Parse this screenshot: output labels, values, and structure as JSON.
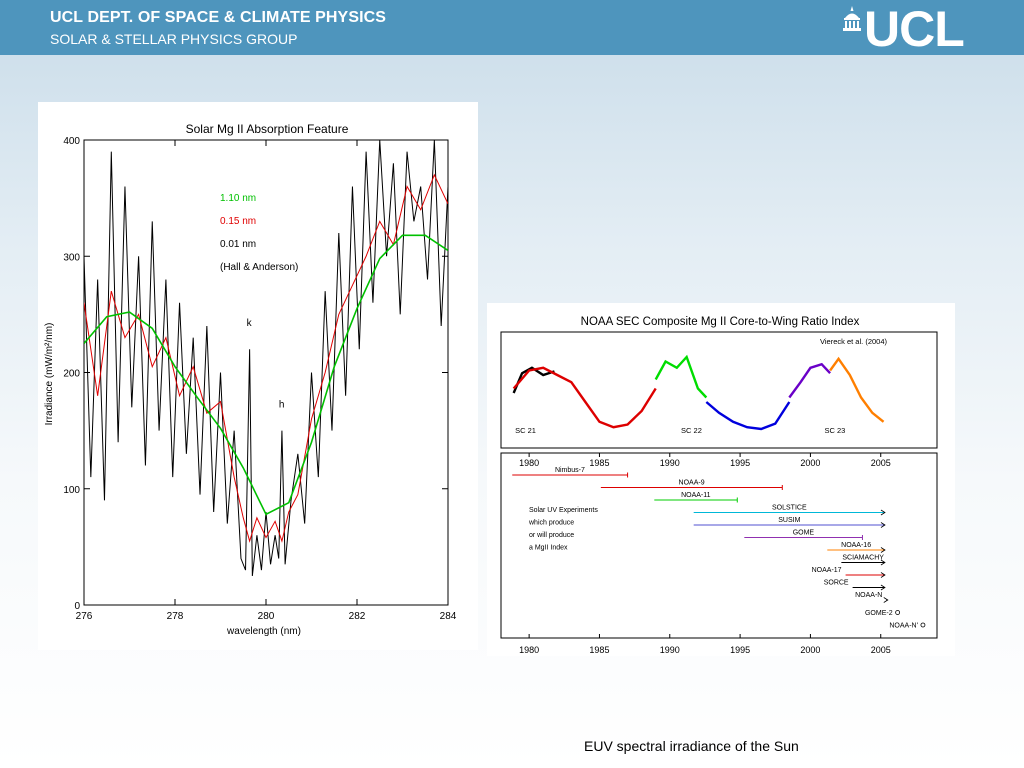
{
  "header": {
    "title": "UCL DEPT. OF SPACE & CLIMATE PHYSICS",
    "subtitle": "SOLAR & STELLAR PHYSICS GROUP",
    "logo_text": "UCL",
    "bg_color": "#4e95bd"
  },
  "caption": "EUV spectral irradiance of the Sun",
  "chart_data": [
    {
      "type": "line",
      "title": "Solar Mg II Absorption Feature",
      "xlabel": "wavelength (nm)",
      "ylabel": "Irradiance (mW/m²/nm)",
      "xlim": [
        276,
        284
      ],
      "ylim": [
        0,
        400
      ],
      "xticks": [
        "276",
        "278",
        "280",
        "282",
        "284"
      ],
      "yticks": [
        "0",
        "100",
        "200",
        "300",
        "400"
      ],
      "legend": [
        {
          "label": "1.10 nm",
          "color": "#00c000"
        },
        {
          "label": "0.15 nm",
          "color": "#e00000"
        },
        {
          "label": "0.01 nm",
          "color": "#000000"
        },
        {
          "label": "(Hall & Anderson)",
          "color": "#000000"
        }
      ],
      "annotations": [
        {
          "text": "k",
          "x": 279.64,
          "y": 240
        },
        {
          "text": "h",
          "x": 280.35,
          "y": 170
        }
      ],
      "series": [
        {
          "name": "1.10 nm",
          "color": "#00c000",
          "x": [
            276,
            276.5,
            277,
            277.5,
            278,
            278.5,
            279,
            279.5,
            280,
            280.5,
            281,
            281.5,
            282,
            282.5,
            283,
            283.5,
            284
          ],
          "y": [
            225,
            248,
            252,
            238,
            205,
            178,
            152,
            118,
            78,
            88,
            140,
            205,
            255,
            298,
            318,
            318,
            305
          ]
        },
        {
          "name": "0.15 nm",
          "color": "#e00000",
          "x": [
            276,
            276.3,
            276.6,
            276.9,
            277.2,
            277.5,
            277.8,
            278.1,
            278.4,
            278.7,
            279,
            279.3,
            279.5,
            279.64,
            279.8,
            280,
            280.2,
            280.35,
            280.5,
            280.7,
            281,
            281.3,
            281.6,
            281.9,
            282.2,
            282.5,
            282.8,
            283.1,
            283.4,
            283.7,
            284
          ],
          "y": [
            260,
            180,
            270,
            230,
            250,
            205,
            230,
            180,
            205,
            165,
            175,
            110,
            75,
            55,
            75,
            58,
            72,
            55,
            80,
            95,
            160,
            200,
            250,
            275,
            300,
            330,
            310,
            360,
            340,
            370,
            345
          ]
        },
        {
          "name": "0.01 nm",
          "color": "#000000",
          "x": [
            276,
            276.15,
            276.3,
            276.45,
            276.6,
            276.75,
            276.9,
            277.05,
            277.2,
            277.35,
            277.5,
            277.65,
            277.8,
            277.95,
            278.1,
            278.25,
            278.4,
            278.55,
            278.7,
            278.85,
            279,
            279.15,
            279.3,
            279.45,
            279.55,
            279.64,
            279.7,
            279.8,
            279.9,
            280,
            280.1,
            280.2,
            280.28,
            280.35,
            280.42,
            280.55,
            280.7,
            280.85,
            281,
            281.15,
            281.3,
            281.45,
            281.6,
            281.75,
            281.9,
            282.05,
            282.2,
            282.35,
            282.5,
            282.65,
            282.8,
            282.95,
            283.1,
            283.25,
            283.4,
            283.55,
            283.7,
            283.85,
            284
          ],
          "y": [
            300,
            110,
            280,
            90,
            390,
            140,
            360,
            170,
            300,
            120,
            330,
            150,
            280,
            110,
            260,
            130,
            230,
            95,
            240,
            80,
            200,
            70,
            150,
            40,
            30,
            220,
            25,
            60,
            30,
            80,
            35,
            60,
            40,
            150,
            35,
            90,
            130,
            70,
            200,
            110,
            270,
            150,
            320,
            180,
            360,
            220,
            390,
            260,
            400,
            300,
            380,
            250,
            390,
            330,
            360,
            280,
            400,
            240,
            360
          ]
        }
      ]
    },
    {
      "type": "line",
      "title": "NOAA SEC Composite Mg II Core-to-Wing Ratio Index",
      "annotation_top": "Viereck et al. (2004)",
      "xlim": [
        1978,
        2009
      ],
      "xticks": [
        "1980",
        "1985",
        "1990",
        "1995",
        "2000",
        "2005"
      ],
      "cycle_labels": [
        {
          "text": "SC 21",
          "x": 1979.0
        },
        {
          "text": "SC 22",
          "x": 1990.8
        },
        {
          "text": "SC 23",
          "x": 2001.0
        }
      ],
      "series": [
        {
          "name": "Nimbus-7 / composite (1978-1981)",
          "color": "#000000",
          "x": [
            1978.9,
            1979.5,
            1980.2,
            1981.0,
            1981.8
          ],
          "y": [
            0.5,
            0.72,
            0.78,
            0.7,
            0.74
          ]
        },
        {
          "name": "composite red",
          "color": "#dd0000",
          "x": [
            1978.9,
            1980.0,
            1981.0,
            1982.0,
            1983.0,
            1984.0,
            1985.0,
            1986.0,
            1987.0,
            1988.0,
            1989.0
          ],
          "y": [
            0.55,
            0.75,
            0.78,
            0.7,
            0.62,
            0.4,
            0.18,
            0.12,
            0.15,
            0.3,
            0.55
          ]
        },
        {
          "name": "composite green",
          "color": "#00dd00",
          "x": [
            1989.0,
            1989.7,
            1990.5,
            1991.2,
            1992.0,
            1992.6
          ],
          "y": [
            0.65,
            0.85,
            0.78,
            0.9,
            0.55,
            0.45
          ]
        },
        {
          "name": "composite blue",
          "color": "#0000dd",
          "x": [
            1992.6,
            1993.5,
            1994.5,
            1995.5,
            1996.5,
            1997.5,
            1998.5
          ],
          "y": [
            0.4,
            0.28,
            0.18,
            0.12,
            0.1,
            0.16,
            0.4
          ]
        },
        {
          "name": "composite purple",
          "color": "#6a00c8",
          "x": [
            1998.5,
            1999.3,
            2000.0,
            2000.8,
            2001.4
          ],
          "y": [
            0.45,
            0.62,
            0.78,
            0.82,
            0.72
          ]
        },
        {
          "name": "composite orange",
          "color": "#ff7f00",
          "x": [
            2001.4,
            2002.0,
            2002.8,
            2003.6,
            2004.4,
            2005.2
          ],
          "y": [
            0.75,
            0.88,
            0.7,
            0.45,
            0.28,
            0.18
          ]
        }
      ],
      "instruments_note": [
        "Solar UV Experiments",
        "which produce",
        "or will produce",
        "a MgII Index"
      ],
      "instruments": [
        {
          "name": "Nimbus-7",
          "start": 1978.8,
          "end": 1987.0,
          "color": "#dd0000",
          "arrow": false
        },
        {
          "name": "NOAA-9",
          "start": 1985.1,
          "end": 1998.0,
          "color": "#dd0000",
          "arrow": false
        },
        {
          "name": "NOAA-11",
          "start": 1988.9,
          "end": 1994.8,
          "color": "#00cc00",
          "arrow": false
        },
        {
          "name": "SOLSTICE",
          "start": 1991.7,
          "end": 2005.3,
          "color": "#00b8d8",
          "arrow": true
        },
        {
          "name": "SUSIM",
          "start": 1991.7,
          "end": 2005.3,
          "color": "#5050d0",
          "arrow": true
        },
        {
          "name": "GOME",
          "start": 1995.3,
          "end": 2003.7,
          "color": "#9030b0",
          "arrow": false
        },
        {
          "name": "NOAA-16",
          "start": 2001.2,
          "end": 2005.3,
          "color": "#ff8000",
          "arrow": true
        },
        {
          "name": "SCIAMACHY",
          "start": 2002.2,
          "end": 2005.3,
          "color": "#000000",
          "arrow": true
        },
        {
          "name": "NOAA-17",
          "start": 2002.5,
          "end": 2005.3,
          "color": "#dd0000",
          "arrow": true
        },
        {
          "name": "SORCE",
          "start": 2003.0,
          "end": 2005.3,
          "color": "#000000",
          "arrow": true
        },
        {
          "name": "NOAA-N",
          "start": 2005.4,
          "end": 2005.5,
          "color": "#000000",
          "arrow": true
        },
        {
          "name": "GOME-2",
          "start": 2006.2,
          "end": 2006.2,
          "color": "#000000",
          "arrow": false
        },
        {
          "name": "NOAA-N'",
          "start": 2008.0,
          "end": 2008.0,
          "color": "#000000",
          "arrow": false
        }
      ]
    }
  ]
}
